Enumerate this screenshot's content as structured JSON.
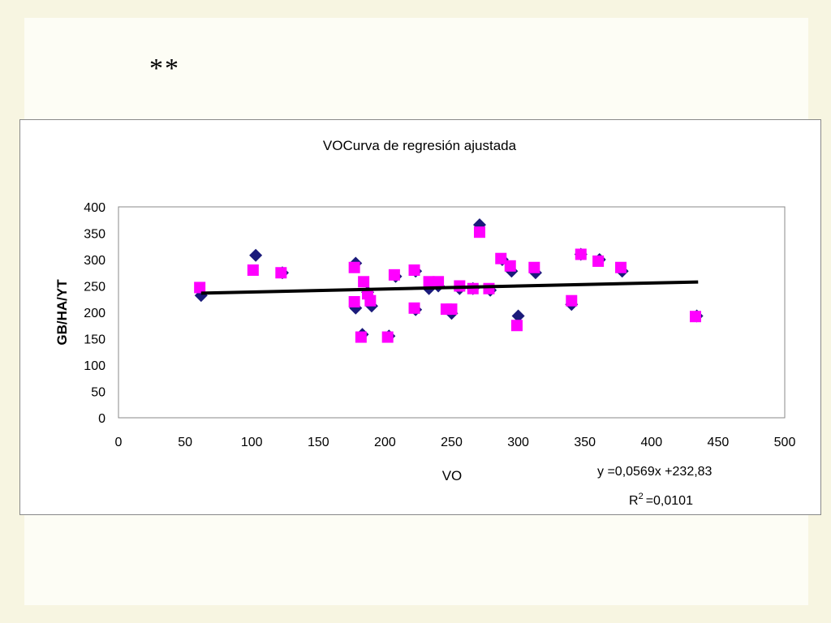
{
  "slide": {
    "heading": "**"
  },
  "chart_data": {
    "type": "scatter",
    "title": "VOCurva de regresión ajustada",
    "xlabel": "VO",
    "ylabel": "GB/HA/YT",
    "xlim": [
      0,
      500
    ],
    "ylim": [
      0,
      400
    ],
    "xticks": [
      "0",
      "50",
      "100",
      "150",
      "200",
      "250",
      "300",
      "350",
      "400",
      "450",
      "500"
    ],
    "yticks": [
      "0",
      "50",
      "100",
      "150",
      "200",
      "250",
      "300",
      "350",
      "400"
    ],
    "grid": false,
    "legend": "none",
    "series": [
      {
        "marker": "diamond",
        "color": "#1a1a7a",
        "points": [
          [
            62,
            232
          ],
          [
            103,
            308
          ],
          [
            123,
            275
          ],
          [
            178,
            293
          ],
          [
            178,
            208
          ],
          [
            183,
            158
          ],
          [
            187,
            238
          ],
          [
            190,
            212
          ],
          [
            203,
            155
          ],
          [
            208,
            268
          ],
          [
            223,
            278
          ],
          [
            223,
            205
          ],
          [
            233,
            245
          ],
          [
            240,
            250
          ],
          [
            250,
            198
          ],
          [
            256,
            245
          ],
          [
            266,
            245
          ],
          [
            271,
            366
          ],
          [
            279,
            242
          ],
          [
            288,
            300
          ],
          [
            295,
            278
          ],
          [
            300,
            193
          ],
          [
            313,
            275
          ],
          [
            340,
            215
          ],
          [
            347,
            310
          ],
          [
            361,
            300
          ],
          [
            378,
            278
          ],
          [
            434,
            193
          ]
        ]
      },
      {
        "marker": "square",
        "color": "#ff00ff",
        "points": [
          [
            61,
            247
          ],
          [
            101,
            280
          ],
          [
            122,
            275
          ],
          [
            177,
            285
          ],
          [
            177,
            220
          ],
          [
            182,
            153
          ],
          [
            184,
            258
          ],
          [
            187,
            235
          ],
          [
            189,
            222
          ],
          [
            202,
            153
          ],
          [
            207,
            271
          ],
          [
            222,
            280
          ],
          [
            222,
            208
          ],
          [
            233,
            258
          ],
          [
            240,
            258
          ],
          [
            246,
            206
          ],
          [
            250,
            206
          ],
          [
            256,
            250
          ],
          [
            266,
            245
          ],
          [
            271,
            352
          ],
          [
            278,
            245
          ],
          [
            287,
            302
          ],
          [
            294,
            288
          ],
          [
            299,
            175
          ],
          [
            312,
            285
          ],
          [
            340,
            222
          ],
          [
            347,
            310
          ],
          [
            360,
            297
          ],
          [
            377,
            285
          ],
          [
            433,
            192
          ]
        ]
      }
    ],
    "trendline": {
      "slope": 0.0569,
      "intercept": 232.83,
      "x_range": [
        62,
        435
      ],
      "equation": "y =0,0569x +232,83",
      "r2_label": "R",
      "r2_sup": "2",
      "r2_value": "=0,0101",
      "color": "#000000"
    }
  }
}
